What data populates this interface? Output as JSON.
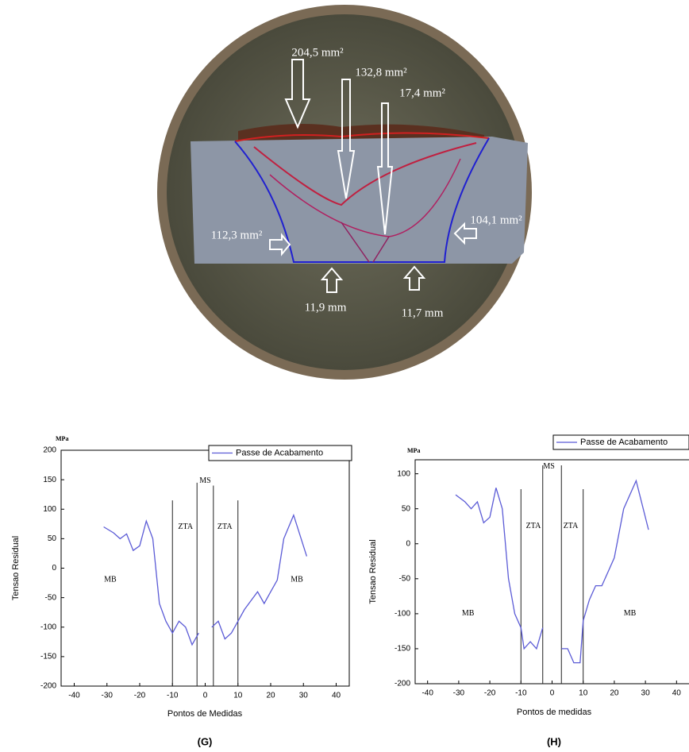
{
  "figure": {
    "labels": [
      "204,5 mm²",
      "132,8 mm²",
      "17,4 mm²",
      "112,3 mm²",
      "104,1 mm²",
      "11,9 mm",
      "11,7 mm"
    ]
  },
  "chart_data": [
    {
      "type": "line",
      "panel_label": "(G)",
      "y_unit_label": "MPa",
      "xlabel": "Pontos de Medidas",
      "ylabel": "Tensao Residual",
      "xlim": [
        -44,
        44
      ],
      "xticks": [
        -40,
        -30,
        -20,
        -10,
        0,
        10,
        20,
        30,
        40
      ],
      "ylim": [
        -200,
        200
      ],
      "yticks": [
        -200,
        -150,
        -100,
        -50,
        0,
        50,
        100,
        150,
        200
      ],
      "legend": "upper right",
      "x": [
        -31,
        -28,
        -26,
        -24,
        -22,
        -20,
        -18,
        -16,
        -14,
        -12,
        -10,
        -8,
        -6,
        -4,
        -2,
        0,
        2,
        4,
        6,
        8,
        10,
        12,
        14,
        16,
        18,
        20,
        22,
        24,
        27,
        31
      ],
      "series": [
        {
          "name": "Passe de Acabamento",
          "color": "#5b5bd6",
          "values": [
            70,
            60,
            50,
            58,
            30,
            38,
            80,
            50,
            -60,
            -90,
            -110,
            -90,
            -100,
            -130,
            -110,
            null,
            -100,
            -90,
            -120,
            -110,
            -90,
            -70,
            -55,
            -40,
            -60,
            -40,
            -20,
            50,
            90,
            20
          ]
        }
      ],
      "vlines": [
        {
          "x": -10,
          "ymax": 115
        },
        {
          "x": -2.5,
          "ymax": 145
        },
        {
          "x": 2.5,
          "ymax": 140
        },
        {
          "x": 10,
          "ymax": 115
        }
      ],
      "annotations": [
        {
          "text": "ZTA",
          "x": -6,
          "y": 70
        },
        {
          "text": "MS",
          "x": 0,
          "y": 148
        },
        {
          "text": "ZTA",
          "x": 6,
          "y": 70
        },
        {
          "text": "MB",
          "x": -29,
          "y": -20
        },
        {
          "text": "MB",
          "x": 28,
          "y": -20
        }
      ]
    },
    {
      "type": "line",
      "panel_label": "(H)",
      "y_unit_label": "MPa",
      "xlabel": "Pontos de medidas",
      "ylabel": "Tensao Residual",
      "xlim": [
        -44,
        44
      ],
      "xticks": [
        -40,
        -30,
        -20,
        -10,
        0,
        10,
        20,
        30,
        40
      ],
      "ylim": [
        -200,
        120
      ],
      "yticks": [
        -200,
        -150,
        -100,
        -50,
        0,
        50,
        100
      ],
      "legend": "upper right",
      "x": [
        -31,
        -28,
        -26,
        -24,
        -22,
        -20,
        -18,
        -16,
        -14,
        -12,
        -10,
        -9,
        -7,
        -5,
        -3,
        0,
        3,
        5,
        7,
        9,
        10,
        12,
        14,
        16,
        18,
        20,
        23,
        27,
        31
      ],
      "series": [
        {
          "name": "Passe de Acabamento",
          "color": "#5b5bd6",
          "values": [
            70,
            60,
            50,
            60,
            30,
            38,
            80,
            50,
            -50,
            -100,
            -120,
            -150,
            -140,
            -150,
            -120,
            null,
            -150,
            -150,
            -170,
            -170,
            -110,
            -80,
            -60,
            -60,
            -40,
            -20,
            50,
            90,
            20
          ]
        }
      ],
      "vlines": [
        {
          "x": -10,
          "ymax": 78
        },
        {
          "x": -3,
          "ymax": 112
        },
        {
          "x": 3,
          "ymax": 112
        },
        {
          "x": 10,
          "ymax": 78
        }
      ],
      "annotations": [
        {
          "text": "ZTA",
          "x": -6,
          "y": 25
        },
        {
          "text": "MS",
          "x": -1,
          "y": 110
        },
        {
          "text": "ZTA",
          "x": 6,
          "y": 25
        },
        {
          "text": "MB",
          "x": -27,
          "y": -100
        },
        {
          "text": "MB",
          "x": 25,
          "y": -100
        }
      ]
    }
  ]
}
